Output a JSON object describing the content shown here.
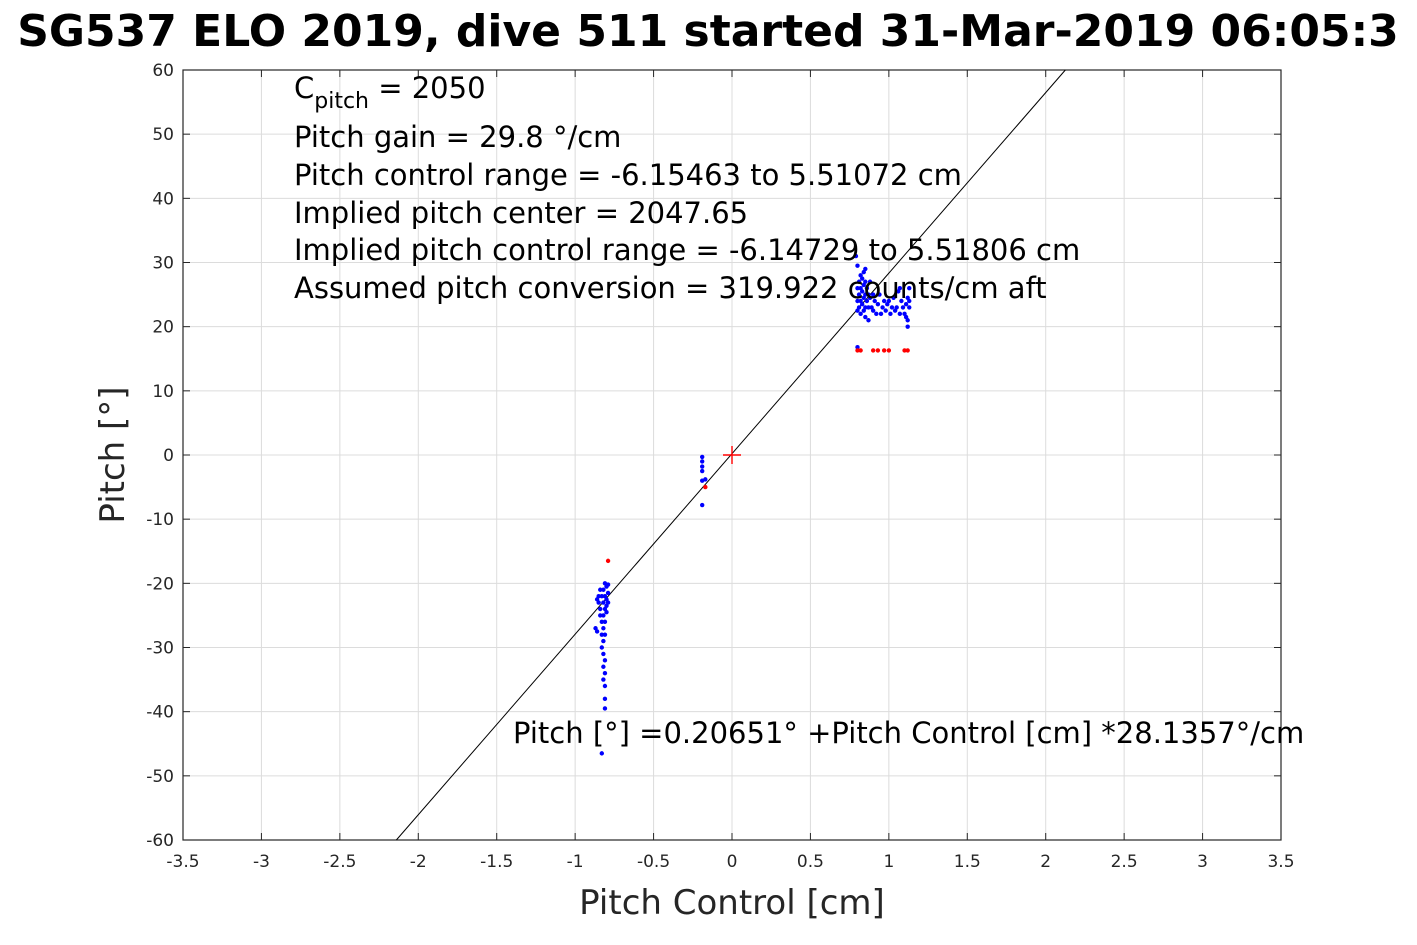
{
  "chart_data": {
    "type": "scatter",
    "title": "SG537 ELO 2019, dive 511 started 31-Mar-2019 06:05:3",
    "xlabel": "Pitch Control [cm]",
    "ylabel": "Pitch [°]",
    "xlim": [
      -3.5,
      3.5
    ],
    "ylim": [
      -60,
      60
    ],
    "xticks": [
      -3.5,
      -3,
      -2.5,
      -2,
      -1.5,
      -1,
      -0.5,
      0,
      0.5,
      1,
      1.5,
      2,
      2.5,
      3,
      3.5
    ],
    "yticks": [
      -60,
      -50,
      -40,
      -30,
      -20,
      -10,
      0,
      10,
      20,
      30,
      40,
      50,
      60
    ],
    "xtick_labels": [
      "-3.5",
      "-3",
      "-2.5",
      "-2",
      "-1.5",
      "-1",
      "-0.5",
      "0",
      "0.5",
      "1",
      "1.5",
      "2",
      "2.5",
      "3",
      "3.5"
    ],
    "ytick_labels": [
      "-60",
      "-50",
      "-40",
      "-30",
      "-20",
      "-10",
      "0",
      "10",
      "20",
      "30",
      "40",
      "50",
      "60"
    ],
    "grid": true,
    "colors": {
      "series_good": "#0000ff",
      "series_bad": "#ff0000",
      "fit": "#000000",
      "center": "#ff0000"
    },
    "fit_line": {
      "intercept": 0.20651,
      "slope": 28.1357
    },
    "center_marker": {
      "x": 0,
      "y": 0
    },
    "annotations": {
      "c_pitch_main": "C",
      "c_pitch_sub": "pitch",
      "c_pitch_value": " = 2050",
      "line2": "Pitch gain = 29.8 °/cm",
      "line3": "Pitch control range = -6.15463 to 5.51072 cm",
      "line4": "Implied pitch center = 2047.65",
      "line5": "Implied pitch control range = -6.14729 to 5.51806 cm",
      "line6": "Assumed pitch conversion = 319.922 counts/cm aft",
      "fit_text": "Pitch [°] =0.20651° +Pitch Control [cm] *28.1357°/cm"
    },
    "series": [
      {
        "color": "#0000ff",
        "points": [
          [
            -0.85,
            -22
          ],
          [
            -0.85,
            -23
          ],
          [
            -0.84,
            -24
          ],
          [
            -0.86,
            -22.5
          ],
          [
            -0.87,
            -27
          ],
          [
            -0.86,
            -27.5
          ],
          [
            -0.84,
            -21
          ],
          [
            -0.84,
            -25
          ],
          [
            -0.83,
            -22
          ],
          [
            -0.83,
            -26
          ],
          [
            -0.83,
            -28
          ],
          [
            -0.83,
            -30
          ],
          [
            -0.82,
            -21
          ],
          [
            -0.82,
            -23
          ],
          [
            -0.82,
            -25
          ],
          [
            -0.82,
            -27
          ],
          [
            -0.82,
            -29
          ],
          [
            -0.82,
            -31
          ],
          [
            -0.82,
            -33
          ],
          [
            -0.82,
            -35
          ],
          [
            -0.81,
            -20
          ],
          [
            -0.81,
            -22
          ],
          [
            -0.81,
            -24
          ],
          [
            -0.81,
            -26
          ],
          [
            -0.81,
            -28
          ],
          [
            -0.81,
            -32
          ],
          [
            -0.81,
            -34
          ],
          [
            -0.81,
            -36
          ],
          [
            -0.81,
            -38
          ],
          [
            -0.81,
            -39.5
          ],
          [
            -0.8,
            -20.5
          ],
          [
            -0.8,
            -22.5
          ],
          [
            -0.8,
            -24.5
          ],
          [
            -0.8,
            -23.5
          ],
          [
            -0.79,
            -20.2
          ],
          [
            -0.79,
            -21.5
          ],
          [
            -0.79,
            -23
          ],
          [
            -0.83,
            -46.5
          ],
          [
            -0.19,
            -0.3
          ],
          [
            -0.19,
            -1
          ],
          [
            -0.19,
            -1.8
          ],
          [
            -0.19,
            -2.5
          ],
          [
            -0.19,
            -4
          ],
          [
            -0.19,
            -7.8
          ],
          [
            -0.17,
            -3.8
          ],
          [
            0.79,
            31
          ],
          [
            0.8,
            29.5
          ],
          [
            0.8,
            26
          ],
          [
            0.8,
            24
          ],
          [
            0.8,
            22.5
          ],
          [
            0.8,
            16.8
          ],
          [
            0.81,
            27
          ],
          [
            0.81,
            25
          ],
          [
            0.81,
            23
          ],
          [
            0.82,
            28
          ],
          [
            0.82,
            26
          ],
          [
            0.82,
            24
          ],
          [
            0.82,
            22
          ],
          [
            0.83,
            27.5
          ],
          [
            0.83,
            25.5
          ],
          [
            0.83,
            23.5
          ],
          [
            0.84,
            28.5
          ],
          [
            0.84,
            26.5
          ],
          [
            0.84,
            24.5
          ],
          [
            0.84,
            22.5
          ],
          [
            0.85,
            29
          ],
          [
            0.85,
            27
          ],
          [
            0.85,
            25
          ],
          [
            0.85,
            23
          ],
          [
            0.85,
            21.5
          ],
          [
            0.86,
            26
          ],
          [
            0.86,
            24
          ],
          [
            0.87,
            25
          ],
          [
            0.87,
            23
          ],
          [
            0.87,
            21
          ],
          [
            0.88,
            27
          ],
          [
            0.88,
            24.5
          ],
          [
            0.89,
            23
          ],
          [
            0.9,
            25
          ],
          [
            0.9,
            22.5
          ],
          [
            0.91,
            24
          ],
          [
            0.92,
            22
          ],
          [
            0.93,
            23.5
          ],
          [
            0.94,
            25
          ],
          [
            0.95,
            22
          ],
          [
            0.96,
            23
          ],
          [
            0.97,
            24
          ],
          [
            0.98,
            22.5
          ],
          [
            0.99,
            23.5
          ],
          [
            1.0,
            24
          ],
          [
            1.01,
            22
          ],
          [
            1.02,
            23
          ],
          [
            1.03,
            24.5
          ],
          [
            1.04,
            22.5
          ],
          [
            1.05,
            23
          ],
          [
            1.06,
            25.5
          ],
          [
            1.07,
            26
          ],
          [
            1.07,
            22
          ],
          [
            1.08,
            24
          ],
          [
            1.09,
            23
          ],
          [
            1.1,
            22
          ],
          [
            1.11,
            23.5
          ],
          [
            1.12,
            24.5
          ],
          [
            1.12,
            21
          ],
          [
            1.13,
            26
          ],
          [
            1.13,
            23
          ],
          [
            1.12,
            20
          ],
          [
            1.11,
            21.5
          ],
          [
            1.13,
            24
          ]
        ]
      },
      {
        "color": "#ff0000",
        "points": [
          [
            -0.79,
            -16.5
          ],
          [
            -0.17,
            -5
          ],
          [
            0.8,
            16.3
          ],
          [
            0.82,
            16.3
          ],
          [
            0.9,
            16.3
          ],
          [
            0.93,
            16.3
          ],
          [
            0.97,
            16.3
          ],
          [
            1.0,
            16.3
          ],
          [
            1.1,
            16.3
          ],
          [
            1.12,
            16.3
          ]
        ]
      }
    ]
  }
}
